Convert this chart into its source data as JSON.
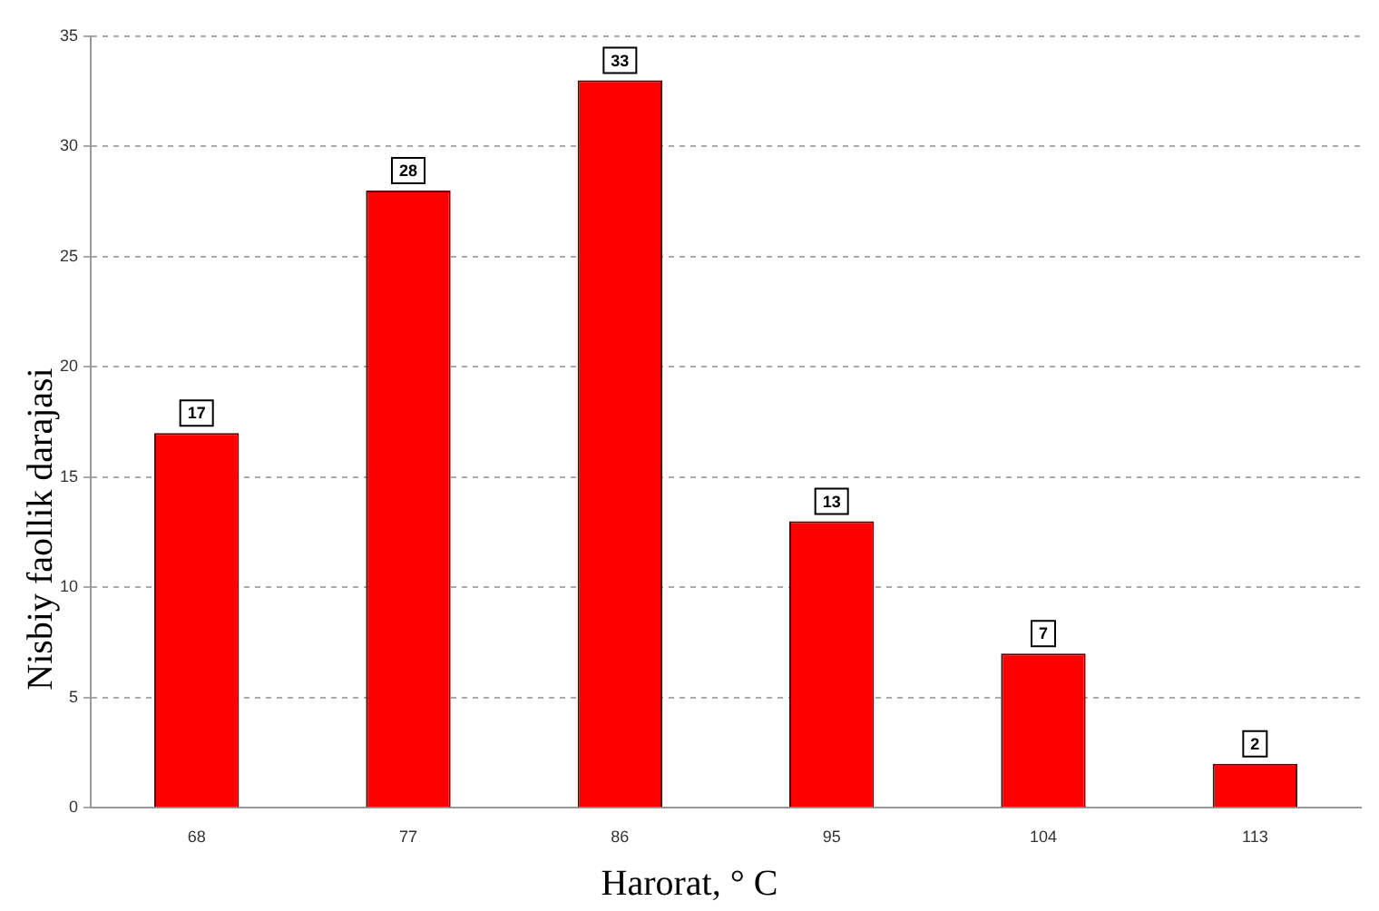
{
  "chart_data": {
    "type": "bar",
    "xlabel": "Harorat, ° C",
    "ylabel": "Nisbiy faollik darajasi",
    "categories": [
      "68",
      "77",
      "86",
      "95",
      "104",
      "113"
    ],
    "values": [
      17,
      28,
      33,
      13,
      7,
      2
    ],
    "color": "#ff0000",
    "ylim": [
      0,
      35
    ],
    "yticks": [
      0,
      5,
      10,
      15,
      20,
      25,
      30,
      35
    ],
    "grid": "y",
    "data_labels": true,
    "legend": false
  }
}
